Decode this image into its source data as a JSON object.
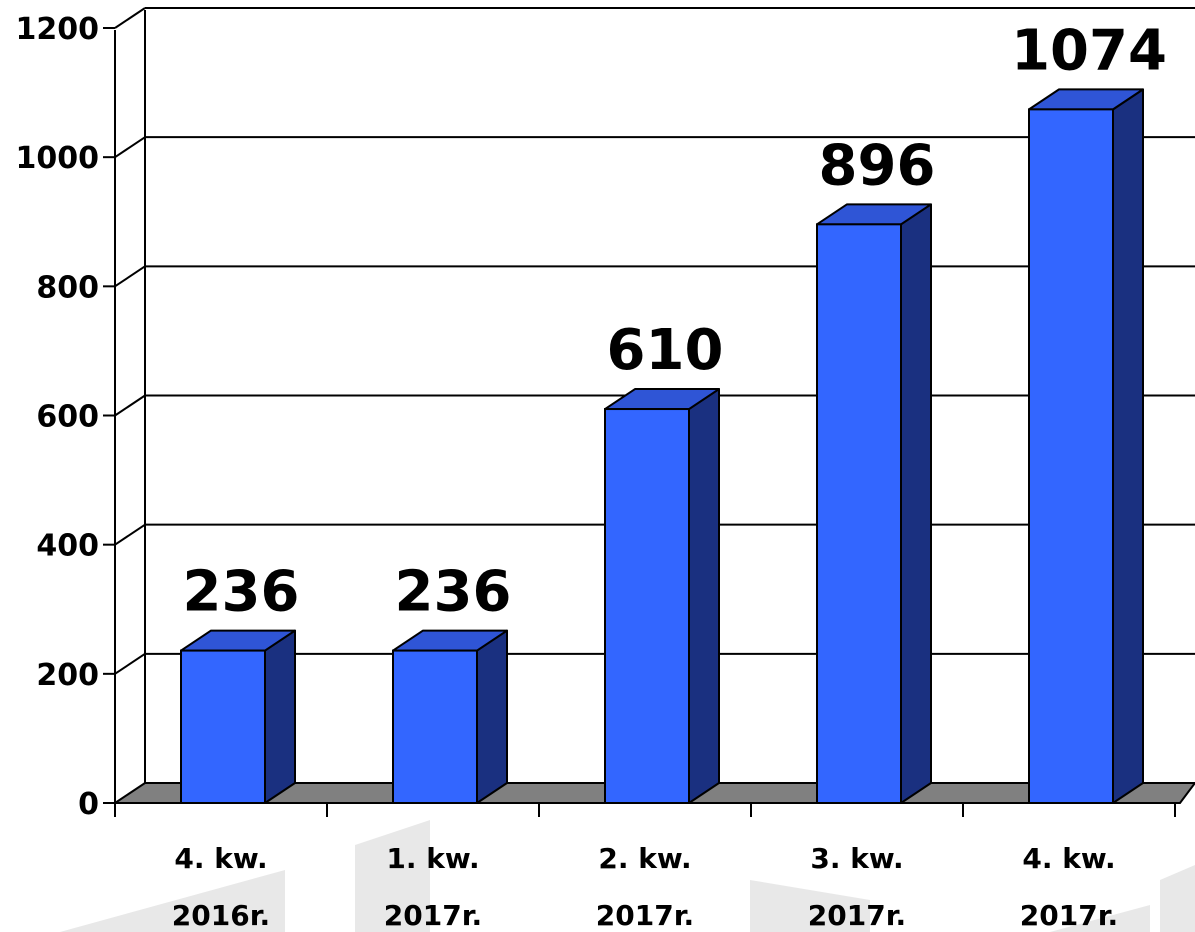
{
  "chart_data": {
    "type": "bar",
    "categories": [
      [
        "4. kw.",
        "2016r."
      ],
      [
        "1. kw.",
        "2017r."
      ],
      [
        "2. kw.",
        "2017r."
      ],
      [
        "3. kw.",
        "2017r."
      ],
      [
        "4. kw.",
        "2017r."
      ]
    ],
    "values": [
      236,
      236,
      610,
      896,
      1074
    ],
    "data_labels": [
      "236",
      "236",
      "610",
      "896",
      "1074"
    ],
    "y_ticks": [
      "0",
      "200",
      "400",
      "600",
      "800",
      "1000",
      "1200"
    ],
    "ylim": [
      0,
      1200
    ],
    "grid": true,
    "legend": "none",
    "title": "",
    "xlabel": "",
    "ylabel": "",
    "colors": {
      "bar_front": "#3366ff",
      "bar_top": "#2f55d6",
      "bar_side": "#1a3080",
      "floor": "#808080",
      "watermark": "#e8e8e8"
    }
  }
}
